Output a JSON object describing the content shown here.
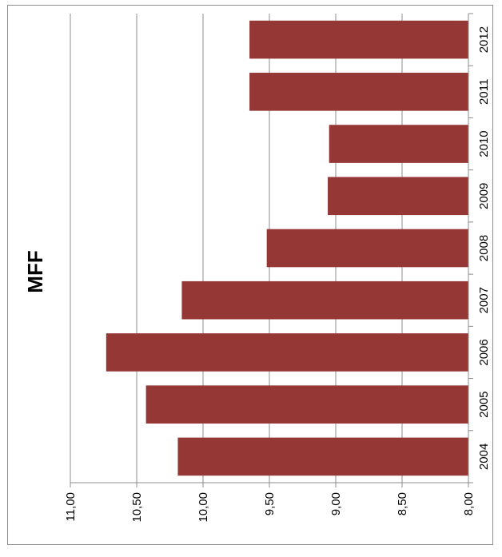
{
  "chart_data": {
    "type": "bar",
    "orientation": "rotated-horizontal",
    "title": "MFF",
    "categories": [
      "2004",
      "2005",
      "2006",
      "2007",
      "2008",
      "2009",
      "2010",
      "2011",
      "2012"
    ],
    "values": [
      10.19,
      10.43,
      10.73,
      10.16,
      9.52,
      9.06,
      9.05,
      9.65,
      9.65
    ],
    "value_ticks": [
      "8,00",
      "8,50",
      "9,00",
      "9,50",
      "10,00",
      "10,50",
      "11,00"
    ],
    "ylim": [
      8.0,
      11.0
    ],
    "grid": true,
    "legend": "none",
    "bar_color": "#953735"
  }
}
